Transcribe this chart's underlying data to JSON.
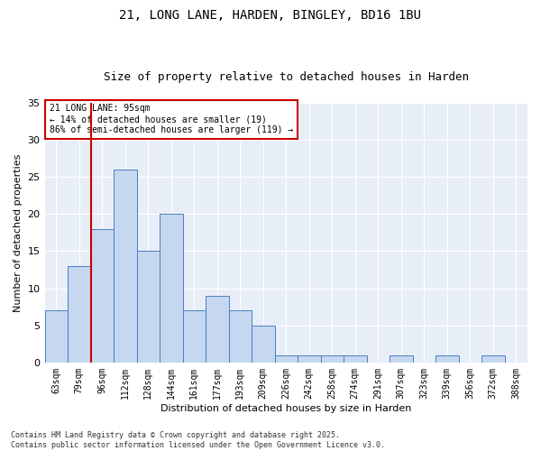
{
  "title1": "21, LONG LANE, HARDEN, BINGLEY, BD16 1BU",
  "title2": "Size of property relative to detached houses in Harden",
  "xlabel": "Distribution of detached houses by size in Harden",
  "ylabel": "Number of detached properties",
  "categories": [
    "63sqm",
    "79sqm",
    "96sqm",
    "112sqm",
    "128sqm",
    "144sqm",
    "161sqm",
    "177sqm",
    "193sqm",
    "209sqm",
    "226sqm",
    "242sqm",
    "258sqm",
    "274sqm",
    "291sqm",
    "307sqm",
    "323sqm",
    "339sqm",
    "356sqm",
    "372sqm",
    "388sqm"
  ],
  "values": [
    7,
    13,
    18,
    26,
    15,
    20,
    7,
    9,
    7,
    5,
    1,
    1,
    1,
    1,
    0,
    1,
    0,
    1,
    0,
    1,
    0
  ],
  "bar_color": "#c5d8f0",
  "bar_edge_color": "#4a7fc1",
  "vline_color": "#cc0000",
  "annotation_title": "21 LONG LANE: 95sqm",
  "annotation_line2": "← 14% of detached houses are smaller (19)",
  "annotation_line3": "86% of semi-detached houses are larger (119) →",
  "annotation_box_color": "#cc0000",
  "ylim": [
    0,
    35
  ],
  "yticks": [
    0,
    5,
    10,
    15,
    20,
    25,
    30,
    35
  ],
  "bg_color": "#e8eef8",
  "footer1": "Contains HM Land Registry data © Crown copyright and database right 2025.",
  "footer2": "Contains public sector information licensed under the Open Government Licence v3.0.",
  "title_fontsize": 10,
  "subtitle_fontsize": 9,
  "ylabel_fontsize": 8,
  "xlabel_fontsize": 8,
  "tick_fontsize": 7,
  "footer_fontsize": 6,
  "ann_fontsize": 7
}
